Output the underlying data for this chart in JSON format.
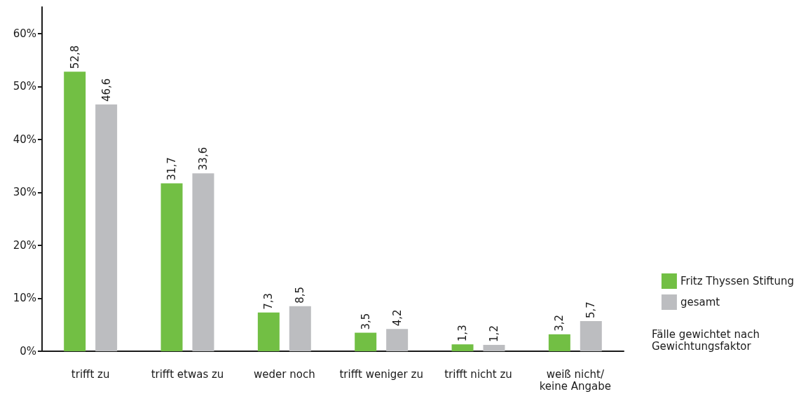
{
  "chart_data": {
    "type": "bar",
    "categories": [
      "trifft zu",
      "trifft etwas zu",
      "weder noch",
      "trifft weniger zu",
      "trifft nicht zu",
      "weiß nicht/\nkeine Angabe"
    ],
    "series": [
      {
        "name": "Fritz Thyssen Stiftung",
        "color": "#72bf44",
        "values": [
          52.8,
          31.7,
          7.3,
          3.5,
          1.3,
          3.2
        ],
        "value_labels": [
          "52,8",
          "31,7",
          "7,3",
          "3,5",
          "1,3",
          "3,2"
        ]
      },
      {
        "name": "gesamt",
        "color": "#bcbdc0",
        "values": [
          46.6,
          33.6,
          8.5,
          4.2,
          1.2,
          5.7
        ],
        "value_labels": [
          "46,6",
          "33,6",
          "8,5",
          "4,2",
          "1,2",
          "5,7"
        ]
      }
    ],
    "ylim": [
      0,
      65
    ],
    "yticks": [
      {
        "value": 0,
        "label": "0%"
      },
      {
        "value": 10,
        "label": "10%"
      },
      {
        "value": 20,
        "label": "20%"
      },
      {
        "value": 30,
        "label": "30%"
      },
      {
        "value": 40,
        "label": "40%"
      },
      {
        "value": 50,
        "label": "50%"
      },
      {
        "value": 60,
        "label": "60%"
      }
    ],
    "grid": false,
    "legend": "right",
    "annotations": [
      "Fälle gewichtet nach\nGewichtungsfaktor"
    ]
  }
}
